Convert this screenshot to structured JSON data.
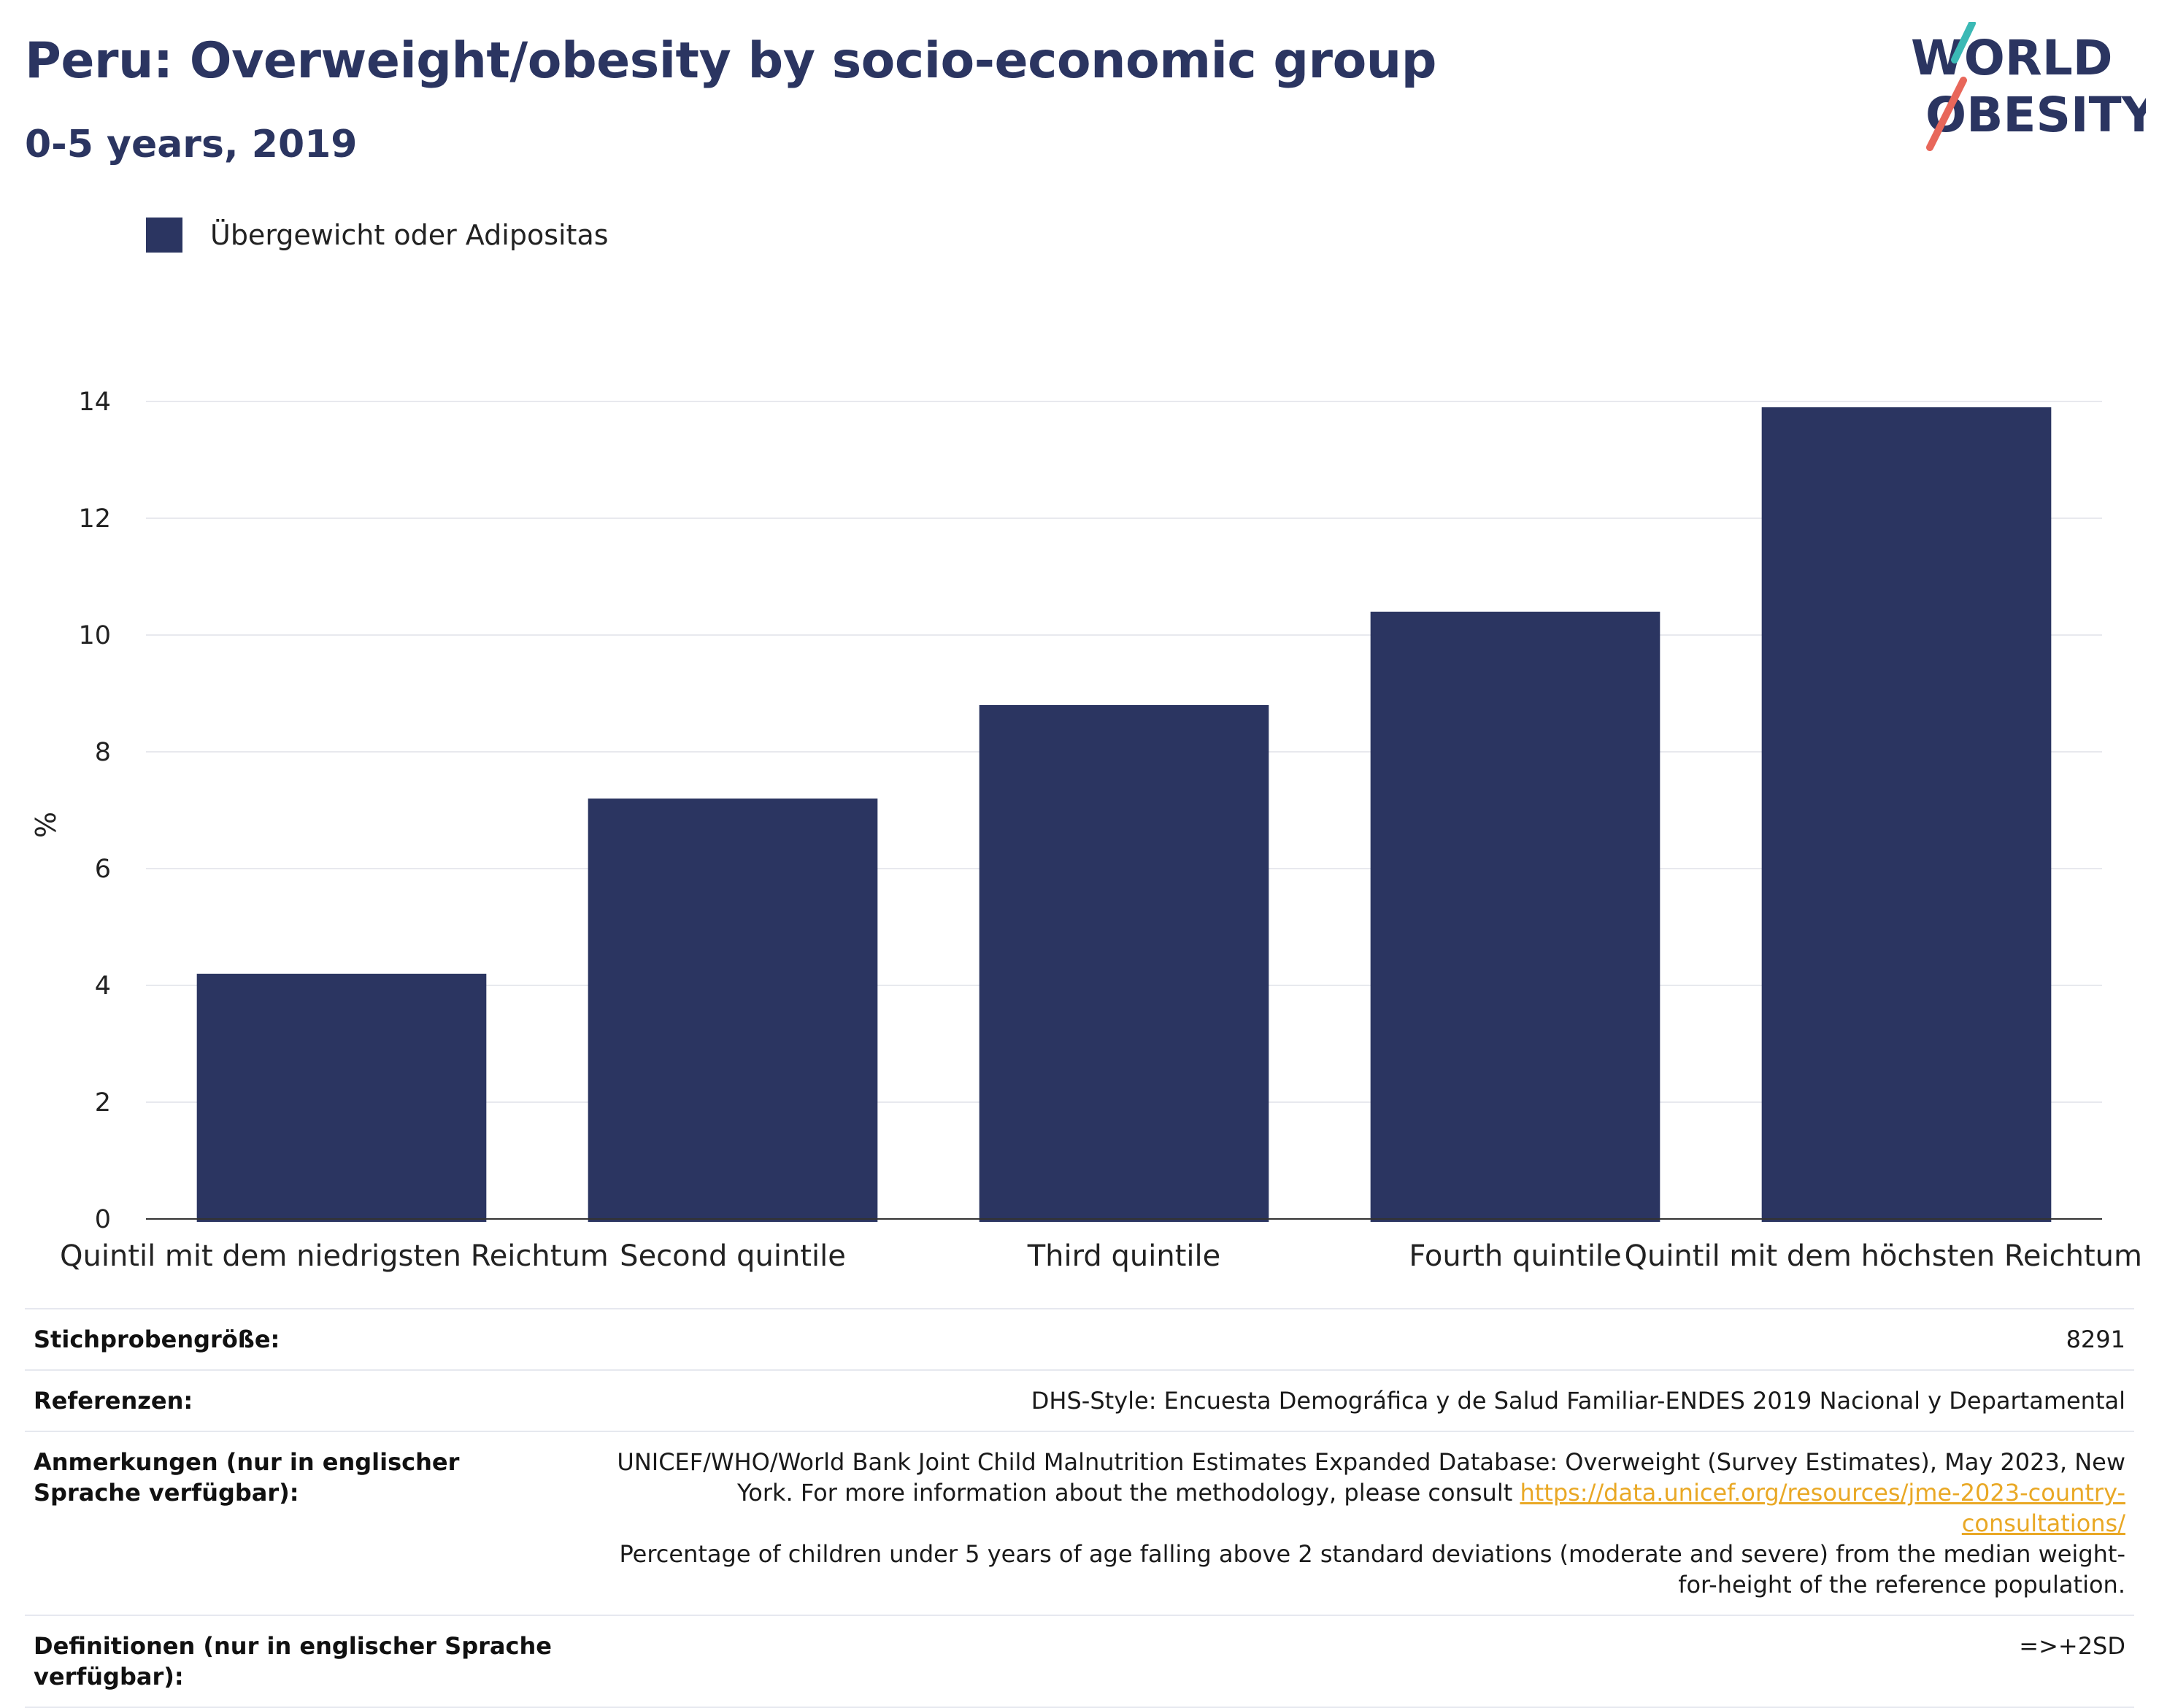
{
  "header": {
    "title": "Peru: Overweight/obesity by socio-economic group",
    "subtitle": "0-5 years, 2019"
  },
  "logo": {
    "line1": "WORLD",
    "line2": "OBESITY",
    "colors": {
      "navy": "#2b3561",
      "teal": "#3bb9b5",
      "coral": "#e8675a"
    }
  },
  "legend": {
    "items": [
      {
        "label": "Übergewicht oder Adipositas",
        "color": "#2b3561"
      }
    ]
  },
  "chart_data": {
    "type": "bar",
    "categories": [
      "Quintil mit dem niedrigsten Reichtum",
      "Second quintile",
      "Third quintile",
      "Fourth quintile",
      "Quintil mit dem höchsten Reichtum"
    ],
    "series": [
      {
        "name": "Übergewicht oder Adipositas",
        "values": [
          4.2,
          7.2,
          8.8,
          10.4,
          13.9
        ],
        "color": "#2b3561"
      }
    ],
    "ylabel": "%",
    "ylim": [
      0,
      14
    ],
    "yticks": [
      0,
      2,
      4,
      6,
      8,
      10,
      12,
      14
    ],
    "grid": true,
    "legend_position": "top-left"
  },
  "info": {
    "sample_size_label": "Stichprobengröße:",
    "sample_size_value": "8291",
    "references_label": "Referenzen:",
    "references_value": "DHS-Style: Encuesta Demográfica y de Salud Familiar-ENDES 2019 Nacional y Departamental",
    "notes_label": "Anmerkungen (nur in englischer Sprache verfügbar):",
    "notes_text_1": "UNICEF/WHO/World Bank Joint Child Malnutrition Estimates Expanded Database: Overweight (Survey Estimates), May 2023, New York. For more information about the methodology, please consult",
    "notes_link": "https://data.unicef.org/resources/jme-2023-country-consultations/",
    "notes_text_2": "Percentage of children under 5 years of age falling above 2 standard deviations (moderate and severe) from the median weight-for-height of the reference population.",
    "definitions_label": "Definitionen (nur in englischer Sprache verfügbar):",
    "definitions_value": "=>+2SD"
  }
}
